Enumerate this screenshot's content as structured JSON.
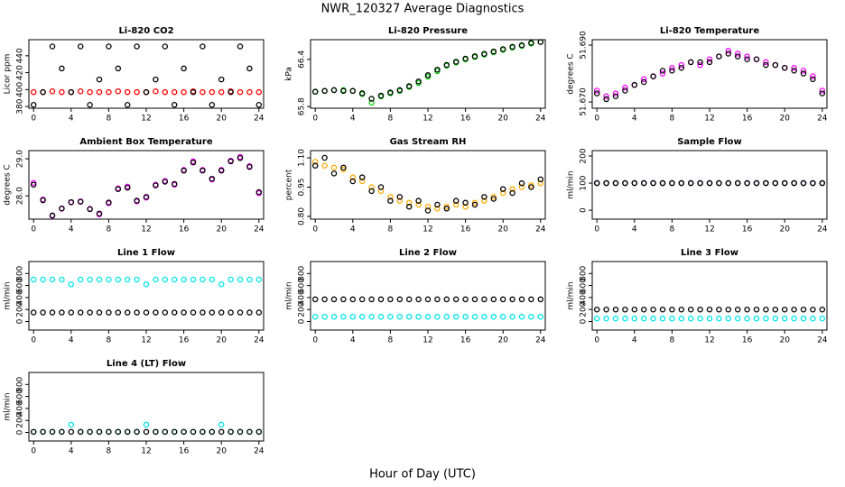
{
  "title": "NWR_120327  Average Diagnostics",
  "xlabel": "Hour of Day (UTC)",
  "chart_data": [
    {
      "type": "scatter",
      "title": "Li-820 CO2",
      "ylabel": "Licor ppm",
      "x": [
        0,
        1,
        2,
        3,
        4,
        5,
        6,
        7,
        8,
        9,
        10,
        11,
        12,
        13,
        14,
        15,
        16,
        17,
        18,
        19,
        20,
        21,
        22,
        23,
        24
      ],
      "xlim": [
        -0.5,
        24.5
      ],
      "xticks": [
        0,
        4,
        8,
        12,
        16,
        20,
        24
      ],
      "ylim": [
        378,
        459
      ],
      "yticks": [
        380,
        400,
        420,
        440
      ],
      "series": [
        {
          "color": "#ff0000",
          "values": [
            397,
            397,
            398,
            397,
            397,
            398,
            397,
            397,
            397,
            398,
            397,
            397,
            397,
            398,
            397,
            397,
            397,
            398,
            397,
            397,
            397,
            398,
            397,
            397,
            397
          ]
        },
        {
          "color": "#000000",
          "values": [
            382,
            397,
            451,
            425,
            397,
            451,
            382,
            412,
            451,
            425,
            382,
            451,
            397,
            412,
            451,
            382,
            425,
            397,
            451,
            382,
            412,
            397,
            451,
            425,
            382
          ]
        }
      ]
    },
    {
      "type": "scatter",
      "title": "Li-820 Pressure",
      "ylabel": "kPa",
      "x": [
        0,
        1,
        2,
        3,
        4,
        5,
        6,
        7,
        8,
        9,
        10,
        11,
        12,
        13,
        14,
        15,
        16,
        17,
        18,
        19,
        20,
        21,
        22,
        23,
        24
      ],
      "xlim": [
        -0.5,
        24.5
      ],
      "xticks": [
        0,
        4,
        8,
        12,
        16,
        20,
        24
      ],
      "ylim": [
        65.78,
        66.65
      ],
      "yticks": [
        65.8,
        66.4
      ],
      "series": [
        {
          "color": "#00cc00",
          "values": [
            65.99,
            66.0,
            66.01,
            66.01,
            66.0,
            65.96,
            65.85,
            65.93,
            65.97,
            66.0,
            66.05,
            66.1,
            66.18,
            66.25,
            66.32,
            66.36,
            66.4,
            66.43,
            66.46,
            66.49,
            66.52,
            66.55,
            66.57,
            66.6,
            66.62
          ]
        },
        {
          "color": "#000000",
          "values": [
            65.99,
            66.0,
            66.01,
            66.0,
            66.0,
            65.97,
            65.9,
            65.94,
            65.98,
            66.01,
            66.06,
            66.12,
            66.2,
            66.27,
            66.33,
            66.37,
            66.41,
            66.44,
            66.47,
            66.5,
            66.53,
            66.56,
            66.58,
            66.61,
            66.62
          ]
        }
      ]
    },
    {
      "type": "scatter",
      "title": "Li-820 Temperature",
      "ylabel": "degrees C",
      "x": [
        0,
        1,
        2,
        3,
        4,
        5,
        6,
        7,
        8,
        9,
        10,
        11,
        12,
        13,
        14,
        15,
        16,
        17,
        18,
        19,
        20,
        21,
        22,
        23,
        24
      ],
      "xlim": [
        -0.5,
        24.5
      ],
      "xticks": [
        0,
        4,
        8,
        12,
        16,
        20,
        24
      ],
      "ylim": [
        51.6678,
        51.6919
      ],
      "yticks": [
        {
          "value": 51.67,
          "label": "51.670"
        },
        {
          "value": 51.69,
          "label": "51.690"
        }
      ],
      "series": [
        {
          "color": "#ff00ff",
          "values": [
            51.674,
            51.672,
            51.673,
            51.675,
            51.676,
            51.678,
            51.679,
            51.68,
            51.682,
            51.683,
            51.684,
            51.683,
            51.685,
            51.686,
            51.688,
            51.687,
            51.686,
            51.685,
            51.684,
            51.683,
            51.682,
            51.682,
            51.681,
            51.679,
            51.674
          ]
        },
        {
          "color": "#000000",
          "values": [
            51.673,
            51.671,
            51.672,
            51.674,
            51.676,
            51.677,
            51.679,
            51.681,
            51.681,
            51.682,
            51.684,
            51.684,
            51.684,
            51.686,
            51.687,
            51.686,
            51.685,
            51.685,
            51.683,
            51.683,
            51.682,
            51.681,
            51.68,
            51.678,
            51.673
          ]
        }
      ]
    },
    {
      "type": "scatter",
      "title": "Ambient Box Temperature",
      "ylabel": "degrees C",
      "x": [
        0,
        1,
        2,
        3,
        4,
        5,
        6,
        7,
        8,
        9,
        10,
        11,
        12,
        13,
        14,
        15,
        16,
        17,
        18,
        19,
        20,
        21,
        22,
        23,
        24
      ],
      "xlim": [
        -0.5,
        24.5
      ],
      "xticks": [
        0,
        4,
        8,
        12,
        16,
        20,
        24
      ],
      "ylim": [
        27.37,
        29.22
      ],
      "yticks": [
        {
          "value": 28,
          "label": "28.0"
        },
        {
          "value": 29,
          "label": "29.0"
        }
      ],
      "series": [
        {
          "color": "#ff00ff",
          "values": [
            28.35,
            27.9,
            27.46,
            27.65,
            27.82,
            27.85,
            27.65,
            27.5,
            27.8,
            28.2,
            28.25,
            27.85,
            27.95,
            28.3,
            28.4,
            28.3,
            28.7,
            28.93,
            28.7,
            28.44,
            28.7,
            28.95,
            29.05,
            28.8,
            28.07
          ]
        },
        {
          "color": "#000000",
          "values": [
            28.3,
            27.88,
            27.47,
            27.66,
            27.83,
            27.84,
            27.64,
            27.52,
            27.82,
            28.18,
            28.22,
            27.87,
            27.97,
            28.28,
            28.38,
            28.32,
            28.68,
            28.9,
            28.68,
            28.46,
            28.68,
            28.93,
            29.02,
            28.78,
            28.1
          ]
        }
      ]
    },
    {
      "type": "scatter",
      "title": "Gas Stream RH",
      "ylabel": "percent",
      "x": [
        0,
        1,
        2,
        3,
        4,
        5,
        6,
        7,
        8,
        9,
        10,
        11,
        12,
        13,
        14,
        15,
        16,
        17,
        18,
        19,
        20,
        21,
        22,
        23,
        24
      ],
      "xlim": [
        -0.5,
        24.5
      ],
      "xticks": [
        0,
        4,
        8,
        12,
        16,
        20,
        24
      ],
      "ylim": [
        0.786,
        1.137
      ],
      "yticks": [
        {
          "value": 0.8,
          "label": "0.80"
        },
        0.95,
        {
          "value": 1.1,
          "label": "1.10"
        }
      ],
      "series": [
        {
          "color": "#ffaa00",
          "values": [
            1.08,
            1.06,
            1.05,
            1.04,
            1.0,
            0.98,
            0.95,
            0.93,
            0.9,
            0.88,
            0.87,
            0.86,
            0.85,
            0.84,
            0.85,
            0.86,
            0.85,
            0.87,
            0.88,
            0.9,
            0.92,
            0.94,
            0.95,
            0.96,
            0.97
          ]
        },
        {
          "color": "#000000",
          "values": [
            1.06,
            1.1,
            1.02,
            1.05,
            0.98,
            1.0,
            0.93,
            0.95,
            0.88,
            0.9,
            0.85,
            0.88,
            0.83,
            0.86,
            0.84,
            0.88,
            0.87,
            0.86,
            0.9,
            0.89,
            0.94,
            0.92,
            0.97,
            0.95,
            0.99
          ]
        }
      ]
    },
    {
      "type": "scatter",
      "title": "Sample Flow",
      "ylabel": "ml/min",
      "x": [
        0,
        1,
        2,
        3,
        4,
        5,
        6,
        7,
        8,
        9,
        10,
        11,
        12,
        13,
        14,
        15,
        16,
        17,
        18,
        19,
        20,
        21,
        22,
        23,
        24
      ],
      "xlim": [
        -0.5,
        24.5
      ],
      "xticks": [
        0,
        4,
        8,
        12,
        16,
        20,
        24
      ],
      "ylim": [
        -33,
        220
      ],
      "yticks": [
        0,
        100,
        200
      ],
      "series": [
        {
          "color": "#000080",
          "values": [
            100,
            100,
            100,
            100,
            100,
            100,
            100,
            100,
            100,
            100,
            100,
            100,
            100,
            100,
            100,
            100,
            100,
            100,
            100,
            100,
            100,
            100,
            100,
            100,
            100
          ]
        },
        {
          "color": "#000000",
          "values": [
            100,
            100,
            100,
            100,
            100,
            100,
            100,
            100,
            100,
            100,
            100,
            100,
            100,
            100,
            100,
            100,
            100,
            100,
            100,
            100,
            100,
            100,
            100,
            100,
            100
          ]
        }
      ]
    },
    {
      "type": "scatter",
      "title": "Line 1 Flow",
      "ylabel": "ml/min",
      "x": [
        0,
        1,
        2,
        3,
        4,
        5,
        6,
        7,
        8,
        9,
        10,
        11,
        12,
        13,
        14,
        15,
        16,
        17,
        18,
        19,
        20,
        21,
        22,
        23,
        24
      ],
      "xlim": [
        -0.5,
        24.5
      ],
      "xticks": [
        0,
        4,
        8,
        12,
        16,
        20,
        24
      ],
      "ylim": [
        -143,
        1000
      ],
      "yticks": [
        0,
        200,
        400,
        600,
        800
      ],
      "series": [
        {
          "color": "#00e5ee",
          "values": [
            700,
            700,
            700,
            700,
            620,
            700,
            700,
            700,
            700,
            700,
            700,
            700,
            620,
            700,
            700,
            700,
            700,
            700,
            700,
            700,
            620,
            700,
            700,
            700,
            700
          ]
        },
        {
          "color": "#000000",
          "values": [
            150,
            150,
            150,
            150,
            150,
            150,
            150,
            150,
            150,
            150,
            150,
            150,
            150,
            150,
            150,
            150,
            150,
            150,
            150,
            150,
            150,
            150,
            150,
            150,
            150
          ]
        }
      ]
    },
    {
      "type": "scatter",
      "title": "Line 2 Flow",
      "ylabel": "ml/min",
      "x": [
        0,
        1,
        2,
        3,
        4,
        5,
        6,
        7,
        8,
        9,
        10,
        11,
        12,
        13,
        14,
        15,
        16,
        17,
        18,
        19,
        20,
        21,
        22,
        23,
        24
      ],
      "xlim": [
        -0.5,
        24.5
      ],
      "xticks": [
        0,
        4,
        8,
        12,
        16,
        20,
        24
      ],
      "ylim": [
        -143,
        1000
      ],
      "yticks": [
        0,
        200,
        400,
        600,
        800
      ],
      "series": [
        {
          "color": "#00e5ee",
          "values": [
            80,
            80,
            80,
            80,
            80,
            80,
            80,
            80,
            80,
            80,
            80,
            80,
            80,
            80,
            80,
            80,
            80,
            80,
            80,
            80,
            80,
            80,
            80,
            80,
            80
          ]
        },
        {
          "color": "#000000",
          "values": [
            370,
            370,
            370,
            370,
            370,
            370,
            370,
            370,
            370,
            370,
            370,
            370,
            370,
            370,
            370,
            370,
            370,
            370,
            370,
            370,
            370,
            370,
            370,
            370,
            370
          ]
        }
      ]
    },
    {
      "type": "scatter",
      "title": "Line 3 Flow",
      "ylabel": "ml/min",
      "x": [
        0,
        1,
        2,
        3,
        4,
        5,
        6,
        7,
        8,
        9,
        10,
        11,
        12,
        13,
        14,
        15,
        16,
        17,
        18,
        19,
        20,
        21,
        22,
        23,
        24
      ],
      "xlim": [
        -0.5,
        24.5
      ],
      "xticks": [
        0,
        4,
        8,
        12,
        16,
        20,
        24
      ],
      "ylim": [
        -143,
        1000
      ],
      "yticks": [
        0,
        200,
        400,
        600,
        800
      ],
      "series": [
        {
          "color": "#00e5ee",
          "values": [
            50,
            50,
            50,
            50,
            50,
            50,
            50,
            50,
            50,
            50,
            50,
            50,
            50,
            50,
            50,
            50,
            50,
            50,
            50,
            50,
            50,
            50,
            50,
            50,
            50
          ]
        },
        {
          "color": "#000000",
          "values": [
            200,
            200,
            200,
            200,
            200,
            200,
            200,
            200,
            200,
            200,
            200,
            200,
            200,
            200,
            200,
            200,
            200,
            200,
            200,
            200,
            200,
            200,
            200,
            200,
            200
          ]
        }
      ]
    },
    {
      "type": "scatter",
      "title": "Line 4 (LT) Flow",
      "ylabel": "ml/min",
      "x": [
        0,
        1,
        2,
        3,
        4,
        5,
        6,
        7,
        8,
        9,
        10,
        11,
        12,
        13,
        14,
        15,
        16,
        17,
        18,
        19,
        20,
        21,
        22,
        23,
        24
      ],
      "xlim": [
        -0.5,
        24.5
      ],
      "xticks": [
        0,
        4,
        8,
        12,
        16,
        20,
        24
      ],
      "ylim": [
        -143,
        1000
      ],
      "yticks": [
        0,
        200,
        400,
        600,
        800
      ],
      "series": [
        {
          "color": "#00e5ee",
          "values": [
            10,
            10,
            10,
            10,
            130,
            10,
            10,
            10,
            10,
            10,
            10,
            10,
            130,
            10,
            10,
            10,
            10,
            10,
            10,
            10,
            130,
            10,
            10,
            10,
            10
          ]
        },
        {
          "color": "#000000",
          "values": [
            10,
            10,
            10,
            10,
            10,
            10,
            10,
            10,
            10,
            10,
            10,
            10,
            10,
            10,
            10,
            10,
            10,
            10,
            10,
            10,
            10,
            10,
            10,
            10,
            10
          ]
        }
      ]
    }
  ]
}
